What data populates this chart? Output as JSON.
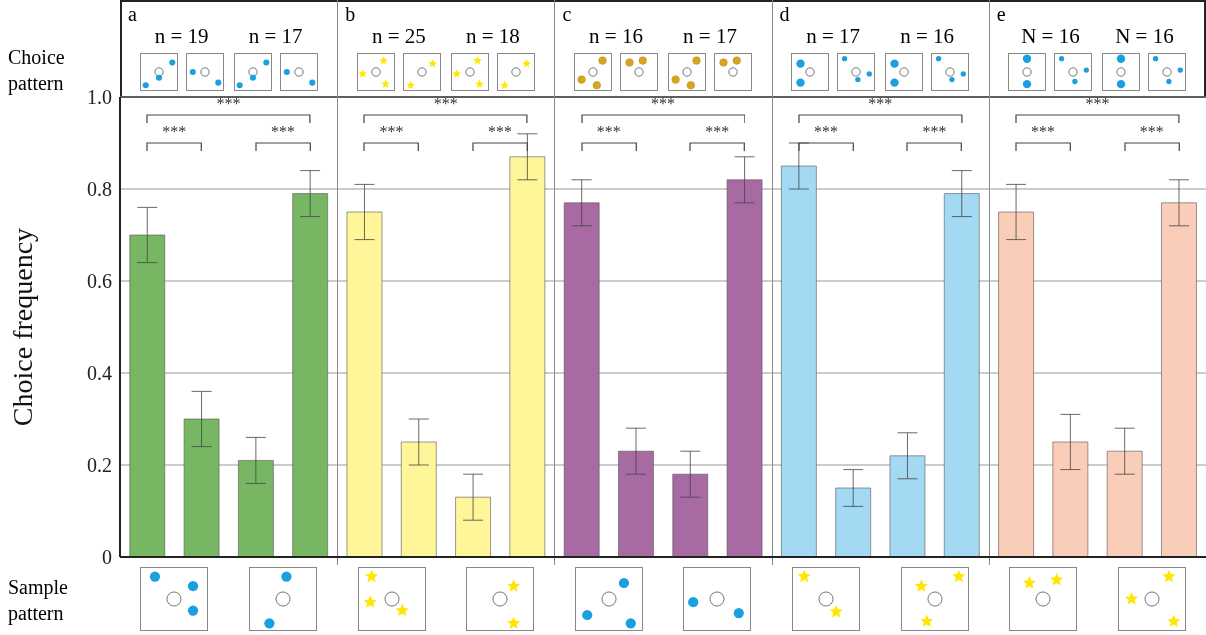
{
  "chart_data": {
    "type": "bar",
    "ylabel": "Choice frequency",
    "categories": [
      null,
      null,
      null,
      null,
      null,
      null,
      null,
      null,
      null,
      null,
      null,
      null,
      null,
      null,
      null,
      null,
      null,
      null,
      null,
      null
    ],
    "values": [
      0.7,
      0.3,
      0.21,
      0.79,
      0.75,
      0.25,
      0.13,
      0.87,
      0.77,
      0.23,
      0.18,
      0.82,
      0.85,
      0.15,
      0.22,
      0.79,
      0.75,
      0.25,
      0.23,
      0.77
    ],
    "errors": [
      0.06,
      0.06,
      0.05,
      0.05,
      0.06,
      0.05,
      0.05,
      0.05,
      0.05,
      0.05,
      0.05,
      0.05,
      0.05,
      0.04,
      0.05,
      0.05,
      0.06,
      0.06,
      0.05,
      0.05
    ],
    "colors": [
      "#77b763",
      "#77b763",
      "#77b763",
      "#77b763",
      "#fff599",
      "#fff599",
      "#fff599",
      "#fff599",
      "#a86aa2",
      "#a86aa2",
      "#a86aa2",
      "#a86aa2",
      "#a3d9f3",
      "#a3d9f3",
      "#a3d9f3",
      "#a3d9f3",
      "#f9cdb8",
      "#f9cdb8",
      "#f9cdb8",
      "#f9cdb8"
    ],
    "ylim": [
      0,
      1
    ],
    "yticks": [
      0,
      0.2,
      0.4,
      0.6,
      0.8,
      {
        "value": 1,
        "label": "1.0"
      }
    ],
    "grid": "y",
    "tick_labels": "y",
    "annotations": [
      "a",
      "n = 19",
      "n = 17",
      "***",
      "***",
      "***",
      "b",
      "n = 25",
      "n = 18",
      "***",
      "***",
      "***",
      "c",
      "n = 16",
      "n = 17",
      "***",
      "***",
      "***",
      "d",
      "n = 17",
      "n = 16",
      "***",
      "***",
      "***",
      "e",
      "N = 16",
      "N = 16",
      "***",
      "***",
      "***",
      "Choice pattern",
      "Sample pattern"
    ]
  }
}
